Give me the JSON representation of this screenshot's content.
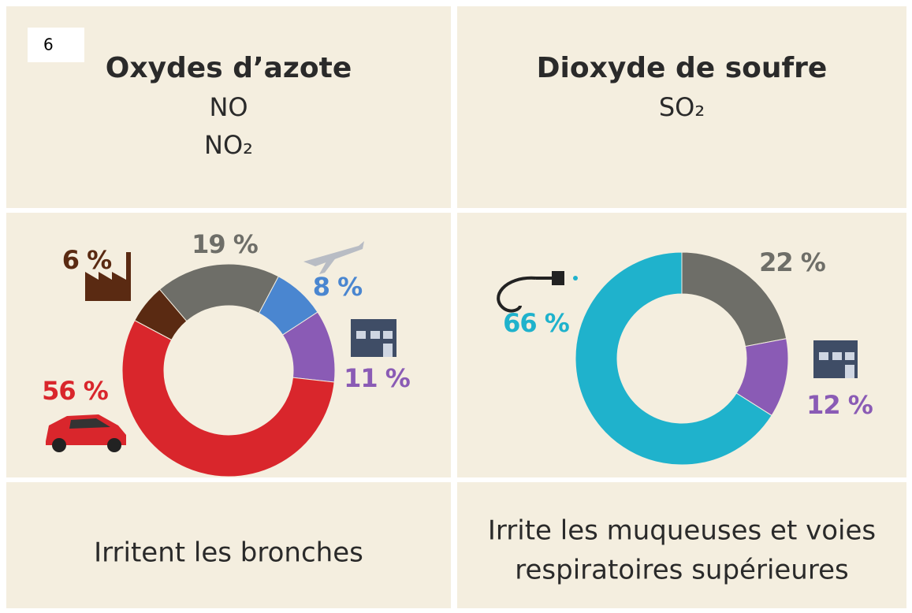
{
  "badge": "6",
  "chart_data": [
    {
      "type": "pie",
      "title": "Oxydes d’azote",
      "formula": [
        "NO",
        "NO₂"
      ],
      "values": [
        6,
        19,
        8,
        11,
        56
      ],
      "value_labels": [
        "6 %",
        "19 %",
        "8 %",
        "11 %",
        "56 %"
      ],
      "colors": [
        "#5a2a12",
        "#6e6e68",
        "#4a86d0",
        "#8a5bb5",
        "#d9262c"
      ],
      "description": [
        "Irritent les bronches"
      ]
    },
    {
      "type": "pie",
      "title": "Dioxyde de soufre",
      "formula": [
        "SO₂"
      ],
      "values": [
        22,
        12,
        66
      ],
      "value_labels": [
        "22 %",
        "12 %",
        "66 %"
      ],
      "colors": [
        "#6e6e68",
        "#8a5bb5",
        "#1fb2cc"
      ],
      "description": [
        "Irrite les muqueuses et voies",
        "respiratoires supérieures"
      ]
    }
  ]
}
